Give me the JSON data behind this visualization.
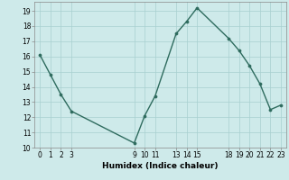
{
  "x": [
    0,
    1,
    2,
    3,
    9,
    10,
    11,
    13,
    14,
    15,
    18,
    19,
    20,
    21,
    22,
    23
  ],
  "y": [
    16.1,
    14.8,
    13.5,
    12.4,
    10.3,
    12.1,
    13.4,
    17.5,
    18.3,
    19.2,
    17.2,
    16.4,
    15.4,
    14.2,
    12.5,
    12.8
  ],
  "xlim": [
    -0.5,
    23.5
  ],
  "ylim": [
    10,
    19.6
  ],
  "yticks": [
    10,
    11,
    12,
    13,
    14,
    15,
    16,
    17,
    18,
    19
  ],
  "xticks": [
    0,
    1,
    2,
    3,
    9,
    10,
    11,
    13,
    14,
    15,
    18,
    19,
    20,
    21,
    22,
    23
  ],
  "xlabel": "Humidex (Indice chaleur)",
  "line_color": "#2e6b5e",
  "bg_color": "#ceeaea",
  "grid_color": "#a8d0d0",
  "marker": "o",
  "markersize": 2.2,
  "linewidth": 1.0,
  "tick_fontsize": 5.5,
  "xlabel_fontsize": 6.5
}
